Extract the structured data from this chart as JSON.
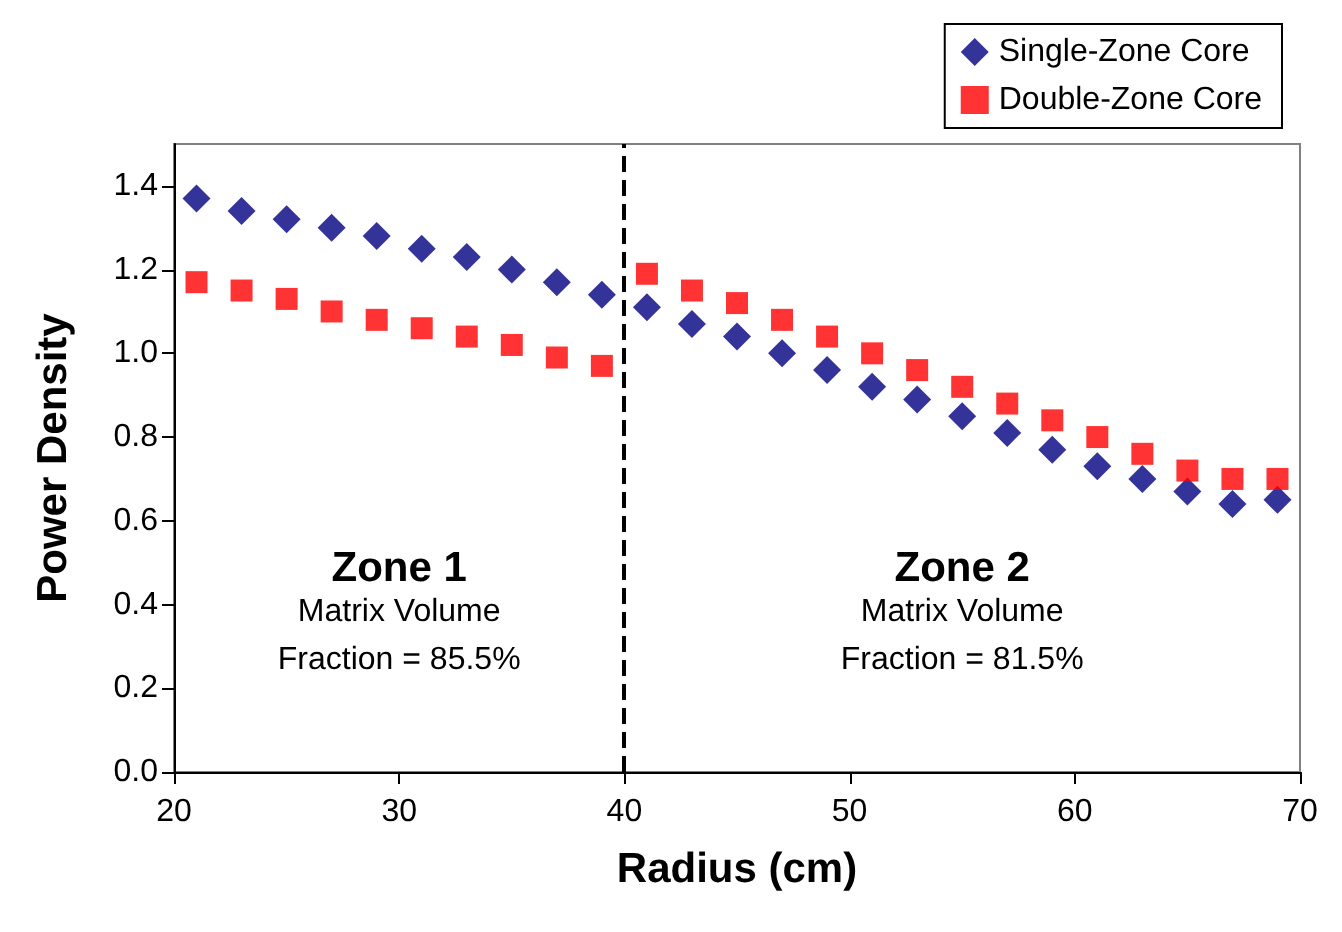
{
  "chart_data": {
    "type": "scatter",
    "xlabel": "Radius (cm)",
    "ylabel": "Power Density",
    "x": [
      21,
      23,
      25,
      27,
      29,
      31,
      33,
      35,
      37,
      39,
      41,
      43,
      45,
      47,
      49,
      51,
      53,
      55,
      57,
      59,
      61,
      63,
      65,
      67,
      69
    ],
    "series": [
      {
        "name": "Single-Zone Core",
        "color": "#000080",
        "marker": "diamond",
        "values": [
          1.37,
          1.34,
          1.32,
          1.3,
          1.28,
          1.25,
          1.23,
          1.2,
          1.17,
          1.14,
          1.11,
          1.07,
          1.04,
          1.0,
          0.96,
          0.92,
          0.89,
          0.85,
          0.81,
          0.77,
          0.73,
          0.7,
          0.67,
          0.64,
          0.65
        ]
      },
      {
        "name": "Double-Zone Core",
        "color": "#ff0000",
        "marker": "square",
        "values": [
          1.17,
          1.15,
          1.13,
          1.1,
          1.08,
          1.06,
          1.04,
          1.02,
          0.99,
          0.97,
          1.19,
          1.15,
          1.12,
          1.08,
          1.04,
          1.0,
          0.96,
          0.92,
          0.88,
          0.84,
          0.8,
          0.76,
          0.72,
          0.7,
          0.7
        ]
      }
    ],
    "xlim": [
      20,
      70
    ],
    "xticks": [
      20,
      30,
      40,
      50,
      60,
      70
    ],
    "ylim": [
      0,
      1.5
    ],
    "yticks": [
      {
        "value": 0,
        "label": "0.0"
      },
      0.2,
      0.4,
      0.6,
      0.8,
      {
        "value": 1,
        "label": "1.0"
      },
      1.2,
      1.4
    ],
    "ref_lines": [
      {
        "axis": "x",
        "value": 40,
        "color": "#000000",
        "line_style": "dashed"
      }
    ],
    "annotations": [
      "Zone 1",
      "Matrix Volume\nFraction = 85.5%",
      "Zone 2",
      "Matrix Volume\nFraction = 81.5%"
    ],
    "grid": false,
    "legend": "top right"
  }
}
